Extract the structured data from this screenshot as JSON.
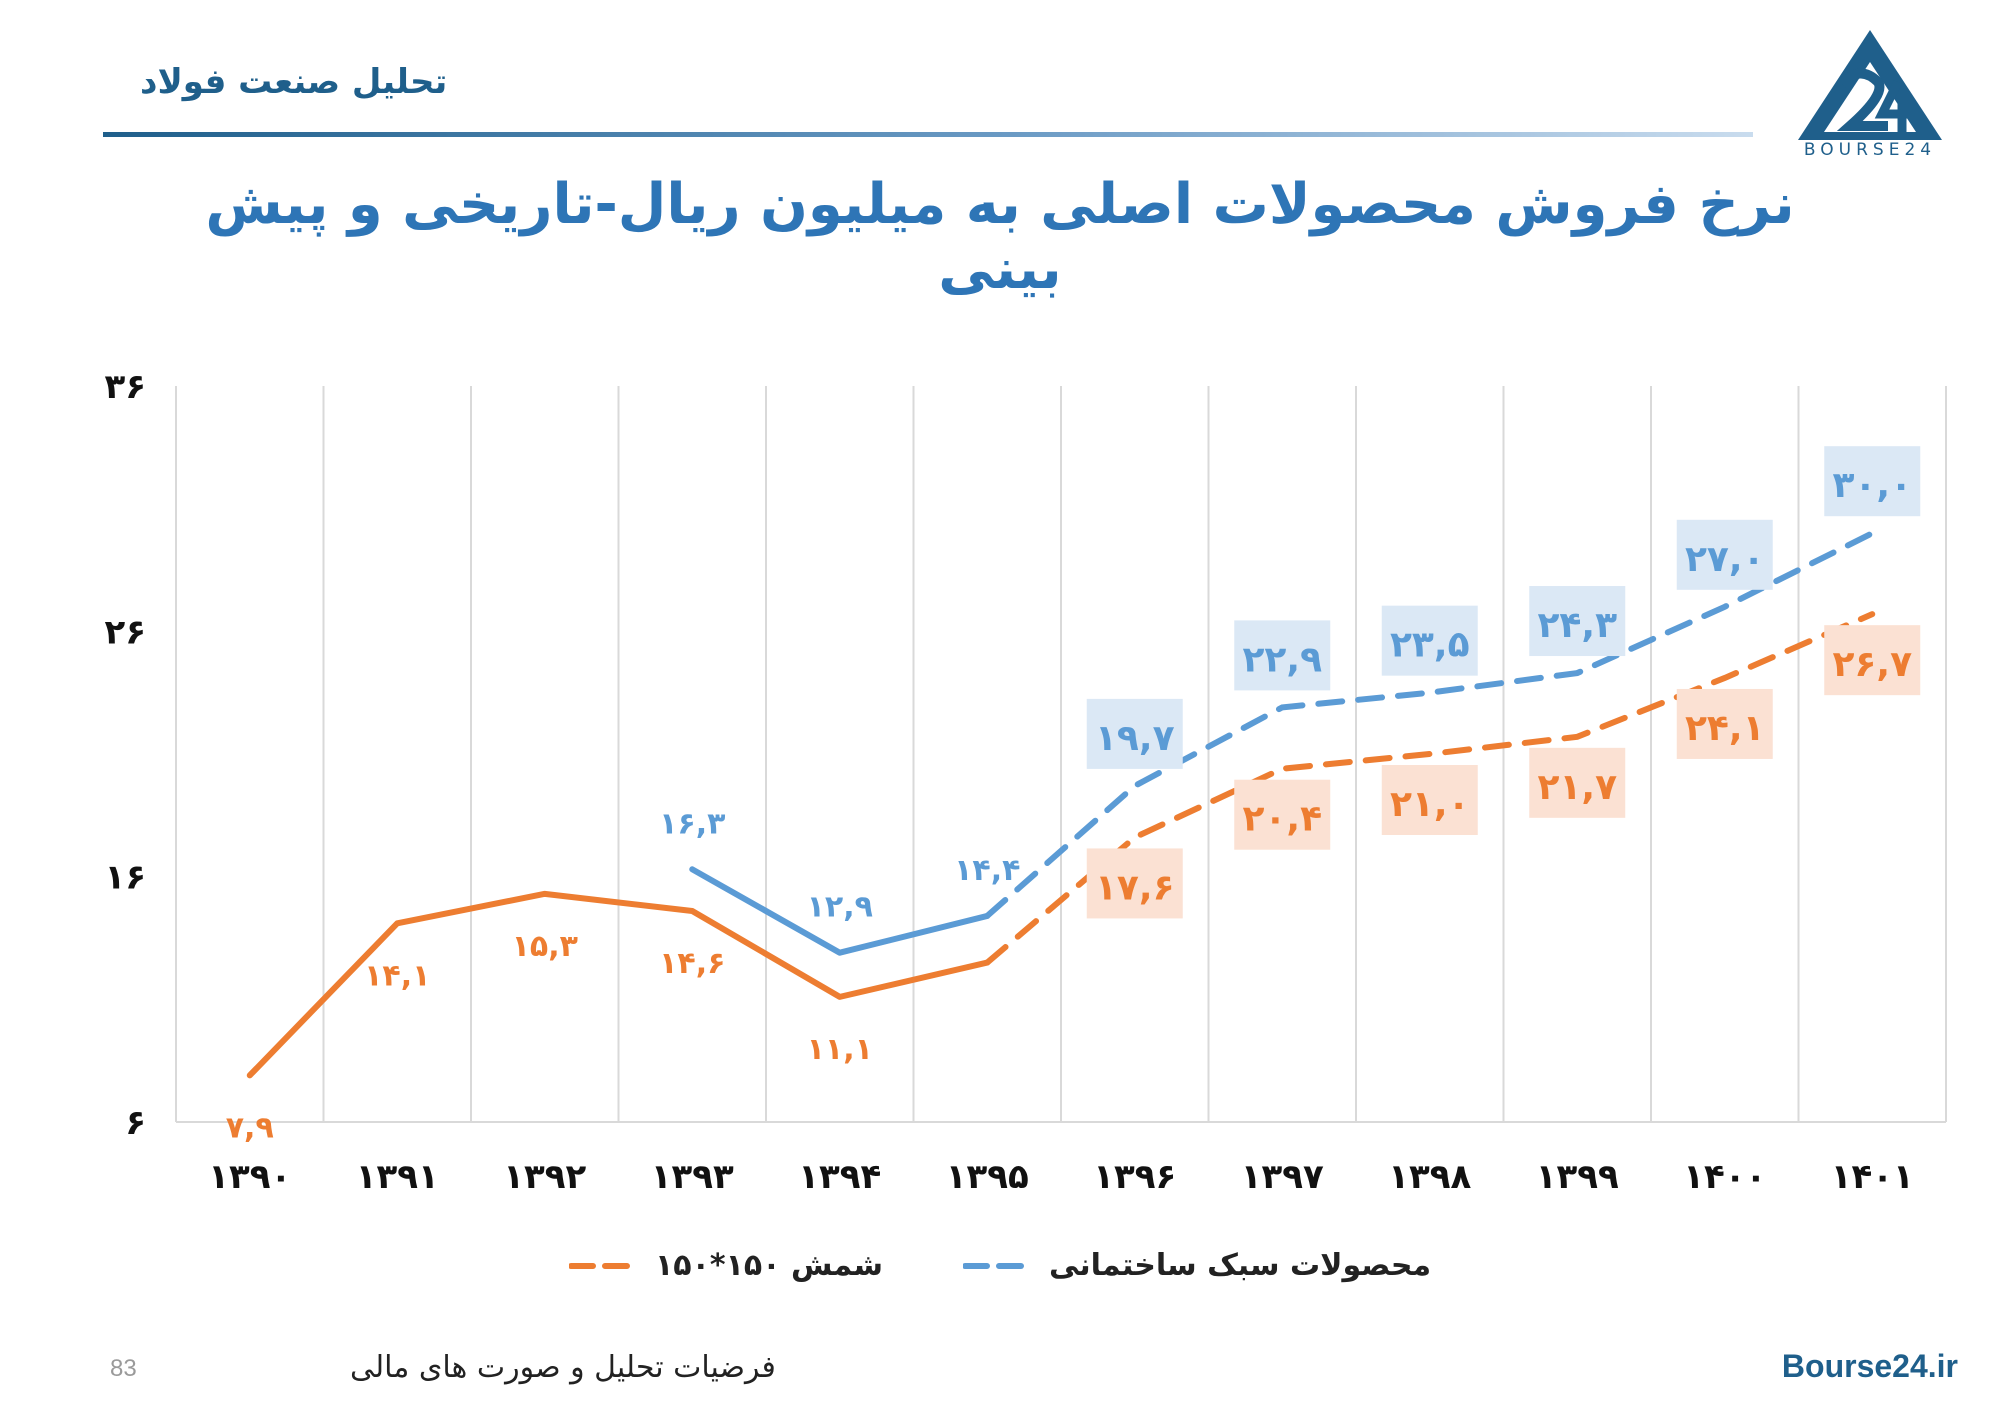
{
  "header": {
    "brand_text": "تحلیل صنعت فولاد",
    "logo_text": "BOURSE24"
  },
  "colors": {
    "orange": "#ed7d31",
    "blue": "#5b9bd5",
    "orange_box": "#fbe1d3",
    "blue_box": "#dbe8f5",
    "title": "#2e75b6",
    "brand": "#1f5f8b"
  },
  "chart_data": {
    "type": "line",
    "title": "نرخ فروش محصولات اصلی به میلیون ریال-تاریخی و پیش بینی",
    "categories": [
      "۱۳۹۰",
      "۱۳۹۱",
      "۱۳۹۲",
      "۱۳۹۳",
      "۱۳۹۴",
      "۱۳۹۵",
      "۱۳۹۶",
      "۱۳۹۷",
      "۱۳۹۸",
      "۱۳۹۹",
      "۱۴۰۰",
      "۱۴۰۱"
    ],
    "y_ticks": [
      "۶",
      "۱۶",
      "۲۶",
      "۳۶"
    ],
    "y_tick_values": [
      6,
      16,
      26,
      36
    ],
    "ylim": [
      6,
      36
    ],
    "grid": "vertical",
    "legend_position": "bottom",
    "forecast_start_index": 5,
    "series": [
      {
        "name": "شمش ۱۵۰*۱۵۰",
        "color": "#ed7d31",
        "values": [
          7.9,
          14.1,
          15.3,
          14.6,
          11.1,
          12.5,
          17.6,
          20.4,
          21.0,
          21.7,
          24.1,
          26.7
        ],
        "labels": [
          "۷,۹",
          "۱۴,۱",
          "۱۵,۳",
          "۱۴,۶",
          "۱۱,۱",
          "",
          "۱۷,۶",
          "۲۰,۴",
          "۲۱,۰",
          "۲۱,۷",
          "۲۴,۱",
          "۲۶,۷"
        ]
      },
      {
        "name": "محصولات سبک ساختمانی",
        "color": "#5b9bd5",
        "values": [
          null,
          null,
          null,
          16.3,
          12.9,
          14.4,
          19.7,
          22.9,
          23.5,
          24.3,
          27.0,
          30.0
        ],
        "labels": [
          "",
          "",
          "",
          "۱۶,۳",
          "۱۲,۹",
          "۱۴,۴",
          "۱۹,۷",
          "۲۲,۹",
          "۲۳,۵",
          "۲۴,۳",
          "۲۷,۰",
          "۳۰,۰"
        ]
      }
    ]
  },
  "footer": {
    "page_number": "83",
    "caption": "فرضیات تحلیل و صورت های مالی",
    "site": "Bourse24.ir"
  }
}
